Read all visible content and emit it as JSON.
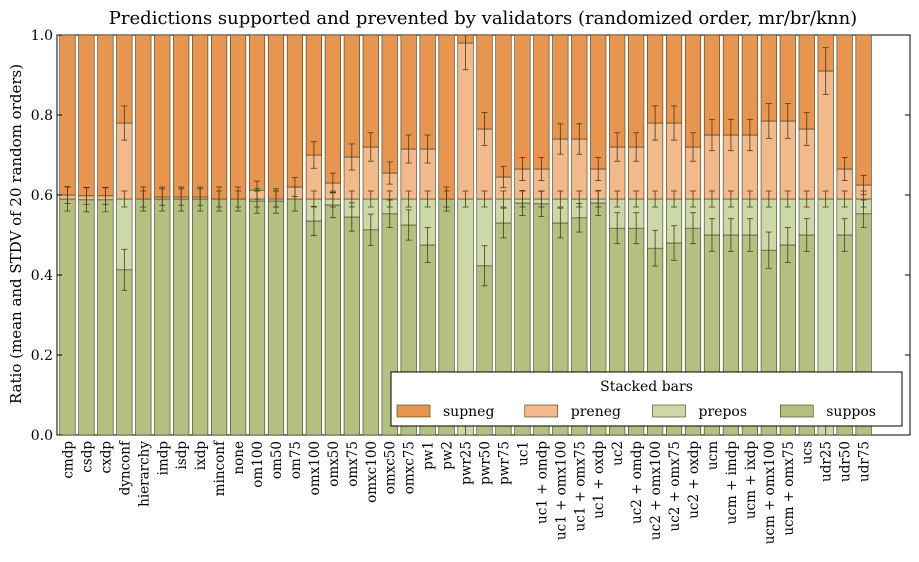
{
  "chart_data": {
    "type": "bar",
    "stacked": true,
    "title": "Predictions supported and prevented by validators (randomized order, mr/br/knn)",
    "ylabel": "Ratio (mean and STDV of 20 random orders)",
    "ylim": [
      0,
      1
    ],
    "yticks": [
      "0.0",
      "0.2",
      "0.4",
      "0.6",
      "0.8",
      "1.0"
    ],
    "legend": {
      "title": "Stacked bars",
      "position": "lower-right"
    },
    "colors": {
      "supneg": "#e8954f",
      "preneg": "#f2b98a",
      "prepos": "#cdd8a8",
      "suppos": "#b3c07f",
      "edge": "#3b3b1f"
    },
    "categories": [
      "cmdp",
      "csdp",
      "cxdp",
      "dynconf",
      "hierarchy",
      "imdp",
      "isdp",
      "ixdp",
      "minconf",
      "none",
      "om100",
      "om50",
      "om75",
      "omx100",
      "omx50",
      "omx75",
      "omxc100",
      "omxc50",
      "omxc75",
      "pw1",
      "pw2",
      "pwr25",
      "pwr50",
      "pwr75",
      "uc1",
      "uc1 + omdp",
      "uc1 + omx100",
      "uc1 + omx75",
      "uc1 + oxdp",
      "uc2",
      "uc2 + omdp",
      "uc2 + omx100",
      "uc2 + omx75",
      "uc2 + oxdp",
      "ucm",
      "ucm + imdp",
      "ucm + ixdp",
      "ucm + omx100",
      "ucm + omx75",
      "ucs",
      "udr25",
      "udr50",
      "udr75"
    ],
    "series": [
      {
        "name": "suppos",
        "values": [
          0.59,
          0.588,
          0.588,
          0.413,
          0.59,
          0.59,
          0.59,
          0.59,
          0.59,
          0.59,
          0.585,
          0.585,
          0.59,
          0.535,
          0.575,
          0.545,
          0.513,
          0.553,
          0.525,
          0.475,
          0.59,
          0.0,
          0.423,
          0.53,
          0.58,
          0.578,
          0.53,
          0.543,
          0.58,
          0.517,
          0.517,
          0.467,
          0.48,
          0.517,
          0.5,
          0.5,
          0.5,
          0.462,
          0.475,
          0.5,
          0.0,
          0.5,
          0.553
        ]
      },
      {
        "name": "prepos",
        "values": [
          0.0,
          0.0,
          0.0,
          0.177,
          0.0,
          0.0,
          0.0,
          0.0,
          0.0,
          0.0,
          0.005,
          0.005,
          0.0,
          0.055,
          0.015,
          0.045,
          0.077,
          0.037,
          0.065,
          0.115,
          0.0,
          0.59,
          0.167,
          0.06,
          0.01,
          0.012,
          0.06,
          0.047,
          0.01,
          0.073,
          0.073,
          0.123,
          0.11,
          0.073,
          0.09,
          0.09,
          0.09,
          0.128,
          0.115,
          0.09,
          0.59,
          0.09,
          0.037
        ]
      },
      {
        "name": "preneg",
        "values": [
          0.01,
          0.01,
          0.01,
          0.19,
          0.0,
          0.005,
          0.005,
          0.005,
          0.0,
          0.0,
          0.022,
          0.0,
          0.03,
          0.11,
          0.04,
          0.105,
          0.13,
          0.065,
          0.125,
          0.125,
          0.0,
          0.39,
          0.175,
          0.055,
          0.075,
          0.075,
          0.15,
          0.15,
          0.075,
          0.13,
          0.13,
          0.19,
          0.19,
          0.13,
          0.16,
          0.16,
          0.16,
          0.195,
          0.195,
          0.175,
          0.32,
          0.075,
          0.035
        ]
      },
      {
        "name": "supneg",
        "values": [
          0.4,
          0.402,
          0.402,
          0.22,
          0.41,
          0.405,
          0.405,
          0.405,
          0.41,
          0.41,
          0.388,
          0.41,
          0.38,
          0.3,
          0.37,
          0.305,
          0.28,
          0.345,
          0.285,
          0.285,
          0.41,
          0.02,
          0.235,
          0.355,
          0.335,
          0.335,
          0.26,
          0.26,
          0.335,
          0.28,
          0.28,
          0.22,
          0.22,
          0.28,
          0.25,
          0.25,
          0.25,
          0.215,
          0.215,
          0.235,
          0.09,
          0.335,
          0.375
        ]
      }
    ]
  }
}
